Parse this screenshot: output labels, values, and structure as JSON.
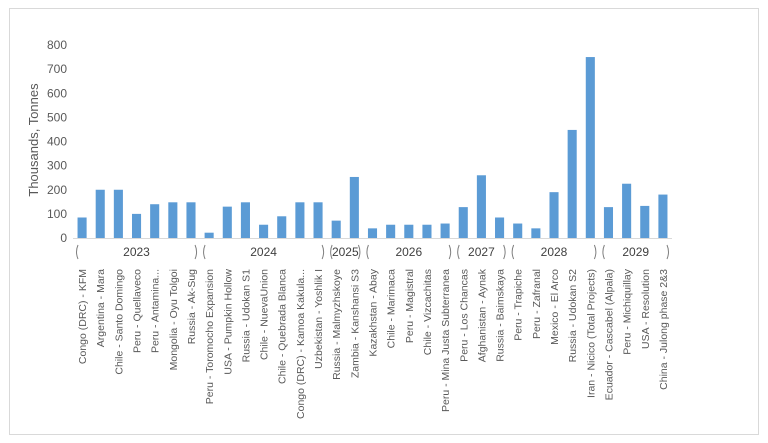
{
  "chart_data": {
    "type": "bar",
    "ylabel": "Thousands, Tonnes",
    "ylim": [
      0,
      800
    ],
    "yticks": [
      0,
      100,
      200,
      300,
      400,
      500,
      600,
      700,
      800
    ],
    "grid": false,
    "legend": "none",
    "bar_color": "#5b9bd5",
    "categories": [
      "Congo (DRC) - KFM",
      "Argentina - Mara",
      "Chile - Santo Domingo",
      "Peru - Quellaveco",
      "Peru - Antamina...",
      "Mongolia - Oyu Tolgoi",
      "Russia - Ak-Sug",
      "Peru - Toromocho Expansion",
      "USA - Pumpkin Hollow",
      "Russia - Udokan S1",
      "Chile - NuevaUnion",
      "Chile - Quebrada Blanca",
      "Congo (DRC) - Kamoa Kakula...",
      "Uzbekistan - Yoshlik I",
      "Russia - Malmyzhskoye",
      "Zambia - Kanshansi S3",
      "Kazakhstan - Abay",
      "Chile - Marimaca",
      "Peru - Magistral",
      "Chile - Vizcachitas",
      "Peru - Mina Justa Subterranea",
      "Peru - Los Chancas",
      "Afghanistan - Aynak",
      "Russia - Baimskaya",
      "Peru - Trapiche",
      "Peru - Zafranal",
      "Mexico - El Arco",
      "Russia - Udokan S2",
      "Iran - Nicico (Total Projects)",
      "Ecuador - Cascabel (Alpala)",
      "Peru - Michiquillay",
      "USA - Resolution",
      "China - Julong phase 2&3"
    ],
    "values": [
      85,
      200,
      200,
      100,
      140,
      148,
      148,
      22,
      130,
      148,
      55,
      90,
      148,
      148,
      72,
      253,
      40,
      55,
      55,
      55,
      60,
      128,
      260,
      85,
      60,
      40,
      190,
      448,
      750,
      128,
      225,
      133,
      180
    ],
    "groups": [
      {
        "label": "2023",
        "start": 0,
        "end": 6
      },
      {
        "label": "2024",
        "start": 7,
        "end": 13
      },
      {
        "label": "2025",
        "start": 14,
        "end": 15
      },
      {
        "label": "2026",
        "start": 16,
        "end": 20
      },
      {
        "label": "2027",
        "start": 21,
        "end": 23
      },
      {
        "label": "2028",
        "start": 24,
        "end": 28
      },
      {
        "label": "2029",
        "start": 29,
        "end": 32
      }
    ]
  }
}
